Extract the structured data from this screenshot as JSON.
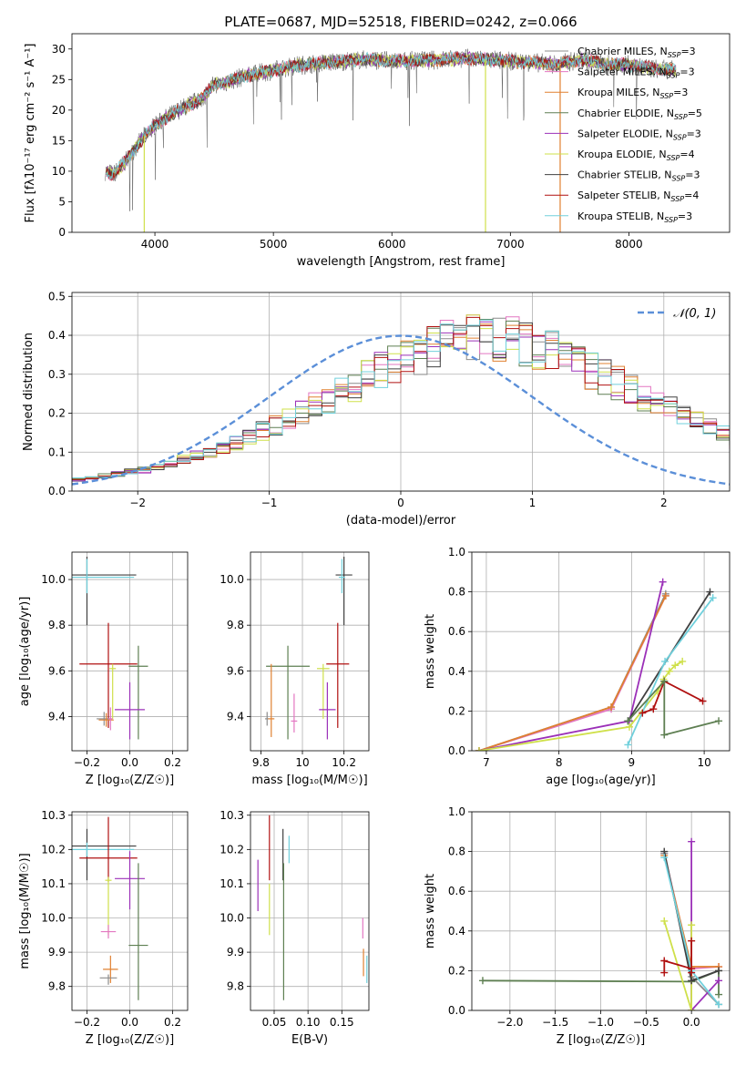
{
  "figure_title": "PLATE=0687, MJD=52518, FIBERID=0242, z=0.066",
  "colors": {
    "chabrier_miles": "#8c8c8c",
    "salpeter_miles": "#e377c2",
    "kroupa_miles": "#e08030",
    "chabrier_elodie": "#5e7f52",
    "salpeter_elodie": "#9b30b8",
    "kroupa_elodie": "#cfe04a",
    "chabrier_stelib": "#404040",
    "salpeter_stelib": "#b01010",
    "kroupa_stelib": "#70d0dc",
    "gaussian": "#5b8fd8"
  },
  "chart_data": [
    {
      "id": "spectrum",
      "type": "line",
      "title": "PLATE=0687, MJD=52518, FIBERID=0242, z=0.066",
      "xlabel": "wavelength [Angstrom, rest frame]",
      "ylabel": "Flux [fλ10⁻¹⁷ erg cm⁻² s⁻¹ A⁻¹]",
      "xlim": [
        3300,
        8850
      ],
      "ylim": [
        0,
        32.5
      ],
      "xticks": [
        4000,
        5000,
        6000,
        7000,
        8000
      ],
      "yticks": [
        0,
        5,
        10,
        15,
        20,
        25,
        30
      ],
      "legend": "right",
      "legend_entries": [
        "Chabrier MILES, N_SSP=3",
        "Salpeter MILES, N_SSP=3",
        "Kroupa MILES, N_SSP=3",
        "Chabrier ELODIE, N_SSP=5",
        "Salpeter ELODIE, N_SSP=3",
        "Kroupa ELODIE, N_SSP=4",
        "Chabrier STELIB, N_SSP=3",
        "Salpeter STELIB, N_SSP=4",
        "Kroupa STELIB, N_SSP=3"
      ],
      "envelope": {
        "x": [
          3580,
          3650,
          3750,
          3900,
          4000,
          4100,
          4200,
          4300,
          4400,
          4500,
          4600,
          4700,
          4800,
          5000,
          5200,
          5400,
          5600,
          5800,
          6000,
          6200,
          6400,
          6600,
          6800,
          7000,
          7200,
          7400,
          7600,
          7800,
          8000,
          8200,
          8400
        ],
        "y": [
          10.0,
          9.5,
          11.5,
          15.5,
          17.5,
          18.8,
          20.0,
          21.0,
          22.0,
          24.2,
          24.5,
          25.2,
          25.7,
          26.5,
          27.3,
          27.7,
          28.0,
          28.3,
          28.0,
          28.1,
          28.2,
          28.5,
          28.3,
          28.0,
          27.8,
          27.5,
          28.3,
          27.5,
          27.4,
          26.8,
          26.5
        ]
      },
      "model_dips": [
        {
          "x": 3910,
          "to": 0
        },
        {
          "x": 6790,
          "to": 0
        },
        {
          "x": 7420,
          "to": 0
        }
      ]
    },
    {
      "id": "residuals",
      "type": "step",
      "xlabel": "(data-model)/error",
      "ylabel": "Normed distribution",
      "xlim": [
        -2.5,
        2.5
      ],
      "ylim": [
        0,
        0.51
      ],
      "xticks": [
        -2,
        -1,
        0,
        1,
        2
      ],
      "yticks": [
        0.0,
        0.1,
        0.2,
        0.3,
        0.4,
        0.5
      ],
      "grid": true,
      "legend": "top-right",
      "gaussian_label": "𝒩(0, 1)",
      "bin_edges_start": -2.5,
      "bin_width": 0.1,
      "base": [
        0.03,
        0.035,
        0.04,
        0.045,
        0.05,
        0.055,
        0.062,
        0.07,
        0.08,
        0.09,
        0.1,
        0.112,
        0.125,
        0.14,
        0.155,
        0.17,
        0.185,
        0.2,
        0.218,
        0.235,
        0.255,
        0.272,
        0.29,
        0.31,
        0.325,
        0.34,
        0.355,
        0.37,
        0.382,
        0.393,
        0.4,
        0.398,
        0.395,
        0.39,
        0.38,
        0.37,
        0.355,
        0.34,
        0.325,
        0.31,
        0.295,
        0.278,
        0.26,
        0.245,
        0.225,
        0.21,
        0.19,
        0.175,
        0.16,
        0.145,
        0.13,
        0.118,
        0.105,
        0.095,
        0.085,
        0.075,
        0.066,
        0.058,
        0.05,
        0.045,
        0.04,
        0.035,
        0.032,
        0.03,
        0.028,
        0.026,
        0.025,
        0.024,
        0.023,
        0.022
      ]
    },
    {
      "id": "age_vs_Z",
      "type": "errorbar",
      "xlabel": "Z [log₁₀(Z/Z☉)]",
      "ylabel": "age  [log₁₀(age/yr)]",
      "xlim": [
        -0.27,
        0.27
      ],
      "ylim": [
        9.25,
        10.12
      ],
      "xticks": [
        -0.2,
        0.0,
        0.2
      ],
      "xticklabels": [
        "−0.2",
        "0.0",
        "0.2"
      ],
      "yticks": [
        9.4,
        9.6,
        9.8,
        10.0
      ],
      "grid": true,
      "points": [
        {
          "x": -0.2,
          "y": 10.02,
          "xerr": 0.46,
          "yerr_lo": 0.22,
          "yerr_hi": 0.08,
          "c": "chabrier_stelib"
        },
        {
          "x": -0.2,
          "y": 10.01,
          "xerr": 0.44,
          "yerr_lo": 0.07,
          "yerr_hi": 0.08,
          "c": "kroupa_stelib"
        },
        {
          "x": -0.1,
          "y": 9.63,
          "xerr": 0.27,
          "yerr_lo": 0.28,
          "yerr_hi": 0.18,
          "c": "salpeter_stelib"
        },
        {
          "x": 0.04,
          "y": 9.62,
          "xerr": 0.09,
          "yerr_lo": 0.32,
          "yerr_hi": 0.09,
          "c": "chabrier_elodie"
        },
        {
          "x": -0.08,
          "y": 9.61,
          "xerr": 0.03,
          "yerr_lo": 0.22,
          "yerr_hi": 0.02,
          "c": "kroupa_elodie"
        },
        {
          "x": 0.0,
          "y": 9.43,
          "xerr": 0.14,
          "yerr_lo": 0.13,
          "yerr_hi": 0.12,
          "c": "salpeter_elodie"
        },
        {
          "x": -0.12,
          "y": 9.39,
          "xerr": 0.07,
          "yerr_lo": 0.03,
          "yerr_hi": 0.03,
          "c": "chabrier_miles"
        },
        {
          "x": -0.11,
          "y": 9.385,
          "xerr": 0.07,
          "yerr_lo": 0.03,
          "yerr_hi": 0.03,
          "c": "kroupa_miles"
        },
        {
          "x": -0.09,
          "y": 9.39,
          "xerr": 0.02,
          "yerr_lo": 0.05,
          "yerr_hi": 0.05,
          "c": "salpeter_miles"
        }
      ]
    },
    {
      "id": "age_vs_mass",
      "type": "errorbar",
      "xlabel": "mass [log₁₀(M/M☉)]",
      "ylabel": "",
      "xlim": [
        9.75,
        10.32
      ],
      "ylim": [
        9.25,
        10.12
      ],
      "xticks": [
        9.8,
        10.0,
        10.2
      ],
      "yticks": [
        9.4,
        9.6,
        9.8,
        10.0
      ],
      "grid": true,
      "points": [
        {
          "x": 10.2,
          "y": 10.02,
          "xerr": 0.08,
          "yerr_lo": 0.22,
          "yerr_hi": 0.08,
          "c": "chabrier_stelib"
        },
        {
          "x": 10.19,
          "y": 10.01,
          "xerr": 0.03,
          "yerr_lo": 0.07,
          "yerr_hi": 0.08,
          "c": "kroupa_stelib"
        },
        {
          "x": 10.17,
          "y": 9.63,
          "xerr": 0.11,
          "yerr_lo": 0.28,
          "yerr_hi": 0.18,
          "c": "salpeter_stelib"
        },
        {
          "x": 9.93,
          "y": 9.62,
          "xerr": 0.21,
          "yerr_lo": 0.32,
          "yerr_hi": 0.09,
          "c": "chabrier_elodie"
        },
        {
          "x": 10.1,
          "y": 9.61,
          "xerr": 0.06,
          "yerr_lo": 0.22,
          "yerr_hi": 0.02,
          "c": "kroupa_elodie"
        },
        {
          "x": 10.12,
          "y": 9.43,
          "xerr": 0.08,
          "yerr_lo": 0.13,
          "yerr_hi": 0.12,
          "c": "salpeter_elodie"
        },
        {
          "x": 9.83,
          "y": 9.39,
          "xerr": 0.02,
          "yerr_lo": 0.03,
          "yerr_hi": 0.03,
          "c": "chabrier_miles"
        },
        {
          "x": 9.85,
          "y": 9.39,
          "xerr": 0.03,
          "yerr_lo": 0.08,
          "yerr_hi": 0.24,
          "c": "kroupa_miles"
        },
        {
          "x": 9.96,
          "y": 9.38,
          "xerr": 0.03,
          "yerr_lo": 0.05,
          "yerr_hi": 0.12,
          "c": "salpeter_miles"
        }
      ]
    },
    {
      "id": "weight_vs_age",
      "type": "line",
      "xlabel": "age  [log₁₀(age/yr)]",
      "ylabel": "mass weight",
      "xlim": [
        6.8,
        10.35
      ],
      "ylim": [
        0,
        1
      ],
      "xticks": [
        7,
        8,
        9,
        10
      ],
      "yticks": [
        0.0,
        0.2,
        0.4,
        0.6,
        0.8,
        1.0
      ],
      "grid": true,
      "series": [
        {
          "c": "salpeter_miles",
          "x": [
            6.9,
            8.72,
            9.47
          ],
          "y": [
            0.0,
            0.21,
            0.78
          ]
        },
        {
          "c": "chabrier_miles",
          "x": [
            6.9,
            8.72,
            9.47
          ],
          "y": [
            0.0,
            0.22,
            0.79
          ]
        },
        {
          "c": "kroupa_miles",
          "x": [
            6.9,
            8.72,
            9.47
          ],
          "y": [
            0.0,
            0.22,
            0.78
          ]
        },
        {
          "c": "salpeter_elodie",
          "x": [
            6.9,
            8.97,
            9.43
          ],
          "y": [
            0.0,
            0.15,
            0.85
          ]
        },
        {
          "c": "kroupa_elodie",
          "x": [
            6.9,
            8.97,
            9.36,
            9.44,
            9.52,
            9.6,
            9.7
          ],
          "y": [
            0.0,
            0.12,
            0.3,
            0.36,
            0.4,
            0.43,
            0.45
          ]
        },
        {
          "c": "chabrier_stelib",
          "x": [
            8.95,
            10.08
          ],
          "y": [
            0.15,
            0.8
          ]
        },
        {
          "c": "kroupa_stelib",
          "x": [
            8.95,
            9.46,
            10.12
          ],
          "y": [
            0.03,
            0.45,
            0.77
          ]
        },
        {
          "c": "salpeter_stelib",
          "x": [
            9.15,
            9.3,
            9.45,
            9.98
          ],
          "y": [
            0.19,
            0.21,
            0.35,
            0.25
          ]
        },
        {
          "c": "chabrier_elodie",
          "x": [
            8.95,
            9.45,
            9.45,
            10.2
          ],
          "y": [
            0.15,
            0.35,
            0.08,
            0.15
          ]
        }
      ]
    },
    {
      "id": "mass_vs_Z",
      "type": "errorbar",
      "xlabel": "Z [log₁₀(Z/Z☉)]",
      "ylabel": "mass [log₁₀(M/M☉)]",
      "xlim": [
        -0.27,
        0.27
      ],
      "ylim": [
        9.73,
        10.31
      ],
      "xticks": [
        -0.2,
        0.0,
        0.2
      ],
      "xticklabels": [
        "−0.2",
        "0.0",
        "0.2"
      ],
      "yticks": [
        9.8,
        9.9,
        10.0,
        10.1,
        10.2,
        10.3
      ],
      "grid": true,
      "points": [
        {
          "x": -0.2,
          "y": 10.21,
          "xerr": 0.46,
          "yerr_lo": 0.1,
          "yerr_hi": 0.05,
          "c": "chabrier_stelib"
        },
        {
          "x": -0.2,
          "y": 10.2,
          "xerr": 0.44,
          "yerr_lo": 0.02,
          "yerr_hi": 0.02,
          "c": "kroupa_stelib"
        },
        {
          "x": -0.1,
          "y": 10.175,
          "xerr": 0.27,
          "yerr_lo": 0.07,
          "yerr_hi": 0.12,
          "c": "salpeter_stelib"
        },
        {
          "x": 0.0,
          "y": 10.115,
          "xerr": 0.14,
          "yerr_lo": 0.09,
          "yerr_hi": 0.08,
          "c": "salpeter_elodie"
        },
        {
          "x": -0.1,
          "y": 10.11,
          "xerr": 0.03,
          "yerr_lo": 0.16,
          "yerr_hi": 0.01,
          "c": "kroupa_elodie"
        },
        {
          "x": 0.04,
          "y": 9.92,
          "xerr": 0.09,
          "yerr_lo": 0.16,
          "yerr_hi": 0.24,
          "c": "chabrier_elodie"
        },
        {
          "x": -0.1,
          "y": 9.96,
          "xerr": 0.07,
          "yerr_lo": 0.02,
          "yerr_hi": 0.02,
          "c": "salpeter_miles"
        },
        {
          "x": -0.09,
          "y": 9.85,
          "xerr": 0.07,
          "yerr_lo": 0.04,
          "yerr_hi": 0.04,
          "c": "kroupa_miles"
        },
        {
          "x": -0.1,
          "y": 9.825,
          "xerr": 0.08,
          "yerr_lo": 0.02,
          "yerr_hi": 0.01,
          "c": "chabrier_miles"
        }
      ]
    },
    {
      "id": "mass_vs_ebv",
      "type": "errorbar",
      "xlabel": "E(B-V)",
      "ylabel": "",
      "xlim": [
        0.015,
        0.19
      ],
      "ylim": [
        9.73,
        10.31
      ],
      "xticks": [
        0.05,
        0.1,
        0.15
      ],
      "xticklabels": [
        "0.05",
        "0.10",
        "0.15"
      ],
      "yticks": [
        9.8,
        9.9,
        10.0,
        10.1,
        10.2,
        10.3
      ],
      "grid": true,
      "points": [
        {
          "x": 0.043,
          "y": 10.21,
          "xerr": 0,
          "yerr_lo": 0.1,
          "yerr_hi": 0.09,
          "c": "salpeter_stelib"
        },
        {
          "x": 0.063,
          "y": 10.2,
          "xerr": 0,
          "yerr_lo": 0.09,
          "yerr_hi": 0.06,
          "c": "chabrier_stelib"
        },
        {
          "x": 0.072,
          "y": 10.2,
          "xerr": 0,
          "yerr_lo": 0.04,
          "yerr_hi": 0.04,
          "c": "kroupa_stelib"
        },
        {
          "x": 0.026,
          "y": 10.1,
          "xerr": 0,
          "yerr_lo": 0.08,
          "yerr_hi": 0.07,
          "c": "salpeter_elodie"
        },
        {
          "x": 0.043,
          "y": 10.05,
          "xerr": 0,
          "yerr_lo": 0.1,
          "yerr_hi": 0.05,
          "c": "kroupa_elodie"
        },
        {
          "x": 0.064,
          "y": 10.0,
          "xerr": 0,
          "yerr_lo": 0.24,
          "yerr_hi": 0.16,
          "c": "chabrier_elodie"
        },
        {
          "x": 0.181,
          "y": 9.97,
          "xerr": 0,
          "yerr_lo": 0.03,
          "yerr_hi": 0.03,
          "c": "salpeter_miles"
        },
        {
          "x": 0.182,
          "y": 9.87,
          "xerr": 0,
          "yerr_lo": 0.04,
          "yerr_hi": 0.04,
          "c": "kroupa_miles"
        },
        {
          "x": 0.187,
          "y": 9.85,
          "xerr": 0,
          "yerr_lo": 0.04,
          "yerr_hi": 0.04,
          "c": "kroupa_stelib"
        }
      ]
    },
    {
      "id": "weight_vs_Z",
      "type": "line",
      "xlabel": "Z [log₁₀(Z/Z☉)]",
      "ylabel": "mass weight",
      "xlim": [
        -2.42,
        0.42
      ],
      "ylim": [
        0,
        1
      ],
      "xticks": [
        -2.0,
        -1.5,
        -1.0,
        -0.5,
        0.0
      ],
      "xticklabels": [
        "−2.0",
        "−1.5",
        "−1.0",
        "−0.5",
        "0.0"
      ],
      "yticks": [
        0.0,
        0.2,
        0.4,
        0.6,
        0.8,
        1.0
      ],
      "grid": true,
      "series": [
        {
          "c": "chabrier_elodie",
          "x": [
            -2.3,
            -0.0,
            0.3,
            0.3
          ],
          "y": [
            0.15,
            0.145,
            0.2,
            0.08
          ]
        },
        {
          "c": "salpeter_miles",
          "x": [
            -0.3,
            0.0,
            0.3
          ],
          "y": [
            0.79,
            0.21,
            0.22
          ]
        },
        {
          "c": "chabrier_miles",
          "x": [
            -0.3,
            0.0,
            0.3
          ],
          "y": [
            0.79,
            0.17,
            0.03
          ]
        },
        {
          "c": "kroupa_miles",
          "x": [
            -0.3,
            0.0,
            0.3
          ],
          "y": [
            0.78,
            0.22,
            0.22
          ]
        },
        {
          "c": "salpeter_elodie",
          "x": [
            0.0,
            0.0,
            0.3
          ],
          "y": [
            0.85,
            0.0,
            0.15
          ]
        },
        {
          "c": "kroupa_elodie",
          "x": [
            -0.3,
            0.0,
            0.0
          ],
          "y": [
            0.45,
            0.0,
            0.43
          ]
        },
        {
          "c": "chabrier_stelib",
          "x": [
            -0.3,
            0.0,
            0.3
          ],
          "y": [
            0.8,
            0.15,
            0.2
          ]
        },
        {
          "c": "kroupa_stelib",
          "x": [
            -0.3,
            0.0,
            0.3
          ],
          "y": [
            0.77,
            0.2,
            0.03
          ]
        },
        {
          "c": "salpeter_stelib",
          "x": [
            -0.3,
            -0.3,
            0.0,
            0.0,
            0.0
          ],
          "y": [
            0.19,
            0.25,
            0.21,
            0.35,
            0.19
          ]
        }
      ]
    }
  ]
}
